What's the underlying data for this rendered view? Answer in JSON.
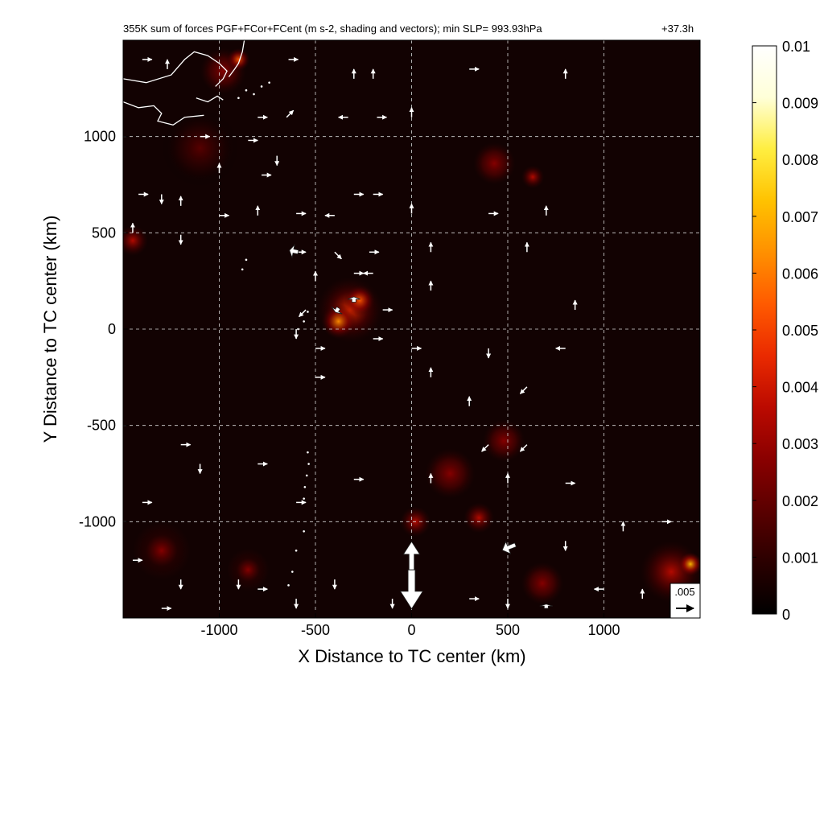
{
  "chart_data": {
    "type": "heatmap",
    "title": "355K sum of forces PGF+FCor+FCent (m s-2, shading and vectors); min SLP= 993.93hPa",
    "time_label": "+37.3h",
    "xlabel": "X Distance to TC center (km)",
    "ylabel": "Y Distance to TC center (km)",
    "xlim": [
      -1500,
      1500
    ],
    "ylim": [
      -1500,
      1500
    ],
    "x_ticks": [
      -1000,
      -500,
      0,
      500,
      1000
    ],
    "y_ticks": [
      -1000,
      -500,
      0,
      500,
      1000
    ],
    "x_tick_labels": [
      "-1000",
      "-500",
      "0",
      "500",
      "1000"
    ],
    "y_tick_labels": [
      "-1000",
      "-500",
      "0",
      "500",
      "1000"
    ],
    "grid": true,
    "colorbar": {
      "min": 0,
      "max": 0.01,
      "ticks": [
        0,
        0.001,
        0.002,
        0.003,
        0.004,
        0.005,
        0.006,
        0.007,
        0.008,
        0.009,
        0.01
      ],
      "tick_labels": [
        "0",
        "0.001",
        "0.002",
        "0.003",
        "0.004",
        "0.005",
        "0.006",
        "0.007",
        "0.008",
        "0.009",
        "0.01"
      ],
      "colors": [
        "#000000",
        "#2a0000",
        "#5a0000",
        "#8a0000",
        "#bb0a00",
        "#ea2a00",
        "#ff5a00",
        "#ff9000",
        "#ffc200",
        "#ffee40",
        "#ffffd8",
        "#ffffff"
      ]
    },
    "reference_vector": {
      "label": ".005",
      "value": 0.005,
      "direction": "east"
    },
    "hotspots": [
      {
        "x": -320,
        "y": 100,
        "r": 170,
        "v": 0.0045
      },
      {
        "x": -380,
        "y": 40,
        "r": 90,
        "v": 0.006
      },
      {
        "x": -270,
        "y": 150,
        "r": 80,
        "v": 0.0055
      },
      {
        "x": -1450,
        "y": 460,
        "r": 80,
        "v": 0.004
      },
      {
        "x": -980,
        "y": 1340,
        "r": 120,
        "v": 0.003
      },
      {
        "x": -900,
        "y": 1400,
        "r": 60,
        "v": 0.005
      },
      {
        "x": 430,
        "y": 860,
        "r": 110,
        "v": 0.003
      },
      {
        "x": 630,
        "y": 790,
        "r": 60,
        "v": 0.004
      },
      {
        "x": 480,
        "y": -580,
        "r": 110,
        "v": 0.003
      },
      {
        "x": 200,
        "y": -750,
        "r": 130,
        "v": 0.003
      },
      {
        "x": 350,
        "y": -980,
        "r": 80,
        "v": 0.0035
      },
      {
        "x": 1350,
        "y": -1260,
        "r": 160,
        "v": 0.004
      },
      {
        "x": 1450,
        "y": -1220,
        "r": 60,
        "v": 0.007
      },
      {
        "x": 680,
        "y": -1320,
        "r": 110,
        "v": 0.003
      },
      {
        "x": -1300,
        "y": -1150,
        "r": 150,
        "v": 0.0025
      },
      {
        "x": -850,
        "y": -1250,
        "r": 110,
        "v": 0.0025
      },
      {
        "x": 20,
        "y": -1000,
        "r": 80,
        "v": 0.004
      },
      {
        "x": -1100,
        "y": 940,
        "r": 200,
        "v": 0.0015
      }
    ],
    "vectors": [
      {
        "x": -1400,
        "y": 1400,
        "u": 1,
        "v": 0
      },
      {
        "x": -1270,
        "y": 1350,
        "u": 0,
        "v": 1
      },
      {
        "x": -640,
        "y": 1400,
        "u": 1,
        "v": 0
      },
      {
        "x": -300,
        "y": 1300,
        "u": 0,
        "v": 1
      },
      {
        "x": -200,
        "y": 1300,
        "u": 0,
        "v": 1
      },
      {
        "x": 300,
        "y": 1350,
        "u": 1,
        "v": 0
      },
      {
        "x": 800,
        "y": 1300,
        "u": 0,
        "v": 1
      },
      {
        "x": -800,
        "y": 1100,
        "u": 1,
        "v": 0
      },
      {
        "x": -650,
        "y": 1100,
        "u": 1,
        "v": 1
      },
      {
        "x": -330,
        "y": 1100,
        "u": -1,
        "v": 0
      },
      {
        "x": -180,
        "y": 1100,
        "u": 1,
        "v": 0
      },
      {
        "x": 0,
        "y": 1100,
        "u": 0,
        "v": 1
      },
      {
        "x": -1100,
        "y": 1000,
        "u": 1,
        "v": 0
      },
      {
        "x": -850,
        "y": 980,
        "u": 1,
        "v": 0
      },
      {
        "x": -700,
        "y": 900,
        "u": 0,
        "v": -1
      },
      {
        "x": -1000,
        "y": 810,
        "u": 0,
        "v": 1
      },
      {
        "x": -780,
        "y": 800,
        "u": 1,
        "v": 0
      },
      {
        "x": -1420,
        "y": 700,
        "u": 1,
        "v": 0
      },
      {
        "x": -1300,
        "y": 700,
        "u": 0,
        "v": -1
      },
      {
        "x": -1200,
        "y": 640,
        "u": 0,
        "v": 1
      },
      {
        "x": -800,
        "y": 590,
        "u": 0,
        "v": 1
      },
      {
        "x": -1000,
        "y": 590,
        "u": 1,
        "v": 0
      },
      {
        "x": -600,
        "y": 600,
        "u": 1,
        "v": 0
      },
      {
        "x": -400,
        "y": 590,
        "u": -1,
        "v": 0
      },
      {
        "x": -300,
        "y": 700,
        "u": 1,
        "v": 0
      },
      {
        "x": -200,
        "y": 700,
        "u": 1,
        "v": 0
      },
      {
        "x": 0,
        "y": 600,
        "u": 0,
        "v": 1
      },
      {
        "x": 400,
        "y": 600,
        "u": 1,
        "v": 0
      },
      {
        "x": 700,
        "y": 590,
        "u": 0,
        "v": 1
      },
      {
        "x": -1450,
        "y": 500,
        "u": 0,
        "v": 1
      },
      {
        "x": -1200,
        "y": 490,
        "u": 0,
        "v": -1
      },
      {
        "x": -600,
        "y": 400,
        "u": 1,
        "v": 0
      },
      {
        "x": -400,
        "y": 400,
        "u": 1,
        "v": -1
      },
      {
        "x": -220,
        "y": 400,
        "u": 1,
        "v": 0
      },
      {
        "x": 100,
        "y": 400,
        "u": 0,
        "v": 1
      },
      {
        "x": 600,
        "y": 400,
        "u": 0,
        "v": 1
      },
      {
        "x": -500,
        "y": 250,
        "u": 0,
        "v": 1
      },
      {
        "x": -300,
        "y": 290,
        "u": 1,
        "v": 0
      },
      {
        "x": -200,
        "y": 290,
        "u": -1,
        "v": 0
      },
      {
        "x": 100,
        "y": 200,
        "u": 0,
        "v": 1
      },
      {
        "x": -550,
        "y": 100,
        "u": -1,
        "v": -1
      },
      {
        "x": -150,
        "y": 100,
        "u": 1,
        "v": 0
      },
      {
        "x": 850,
        "y": 100,
        "u": 0,
        "v": 1
      },
      {
        "x": -600,
        "y": 0,
        "u": 0,
        "v": -1
      },
      {
        "x": -200,
        "y": -50,
        "u": 1,
        "v": 0
      },
      {
        "x": 0,
        "y": -100,
        "u": 1,
        "v": 0
      },
      {
        "x": -500,
        "y": -100,
        "u": 1,
        "v": 0
      },
      {
        "x": 400,
        "y": -100,
        "u": 0,
        "v": -1
      },
      {
        "x": 800,
        "y": -100,
        "u": -1,
        "v": 0
      },
      {
        "x": -500,
        "y": -250,
        "u": 1,
        "v": 0
      },
      {
        "x": 100,
        "y": -250,
        "u": 0,
        "v": 1
      },
      {
        "x": 600,
        "y": -300,
        "u": -1,
        "v": -1
      },
      {
        "x": 300,
        "y": -400,
        "u": 0,
        "v": 1
      },
      {
        "x": -1200,
        "y": -600,
        "u": 1,
        "v": 0
      },
      {
        "x": 400,
        "y": -600,
        "u": -1,
        "v": -1
      },
      {
        "x": 600,
        "y": -600,
        "u": -1,
        "v": -1
      },
      {
        "x": -1100,
        "y": -700,
        "u": 0,
        "v": -1
      },
      {
        "x": -800,
        "y": -700,
        "u": 1,
        "v": 0
      },
      {
        "x": -300,
        "y": -780,
        "u": 1,
        "v": 0
      },
      {
        "x": 100,
        "y": -800,
        "u": 0,
        "v": 1
      },
      {
        "x": 500,
        "y": -800,
        "u": 0,
        "v": 1
      },
      {
        "x": 800,
        "y": -800,
        "u": 1,
        "v": 0
      },
      {
        "x": -1400,
        "y": -900,
        "u": 1,
        "v": 0
      },
      {
        "x": -600,
        "y": -900,
        "u": 1,
        "v": 0
      },
      {
        "x": 800,
        "y": -1100,
        "u": 0,
        "v": -1
      },
      {
        "x": 1100,
        "y": -1050,
        "u": 0,
        "v": 1
      },
      {
        "x": 1300,
        "y": -1000,
        "u": 1,
        "v": 0
      },
      {
        "x": -1450,
        "y": -1200,
        "u": 1,
        "v": 0
      },
      {
        "x": -1200,
        "y": -1300,
        "u": 0,
        "v": -1
      },
      {
        "x": -900,
        "y": -1300,
        "u": 0,
        "v": -1
      },
      {
        "x": -800,
        "y": -1350,
        "u": 1,
        "v": 0
      },
      {
        "x": -600,
        "y": -1400,
        "u": 0,
        "v": -1
      },
      {
        "x": -400,
        "y": -1300,
        "u": 0,
        "v": -1
      },
      {
        "x": 1000,
        "y": -1350,
        "u": -1,
        "v": 0
      },
      {
        "x": 1200,
        "y": -1400,
        "u": 0,
        "v": 1
      },
      {
        "x": -1300,
        "y": -1450,
        "u": 1,
        "v": 0
      },
      {
        "x": -100,
        "y": -1400,
        "u": 0,
        "v": -1
      },
      {
        "x": 300,
        "y": -1400,
        "u": 1,
        "v": 0
      },
      {
        "x": 500,
        "y": -1400,
        "u": 0,
        "v": -1
      }
    ],
    "large_vectors": [
      {
        "x": 0,
        "y": -1250,
        "u": 0,
        "v": 1,
        "mag": 0.008
      },
      {
        "x": 0,
        "y": -1250,
        "u": 0,
        "v": -1,
        "mag": 0.011
      },
      {
        "x": 540,
        "y": -1120,
        "u": -1,
        "v": -0.4,
        "mag": 0.004
      },
      {
        "x": -590,
        "y": 400,
        "u": -1,
        "v": 0.2,
        "mag": 0.0025
      },
      {
        "x": -300,
        "y": 140,
        "u": 0,
        "v": 1,
        "mag": 0.0015
      },
      {
        "x": -380,
        "y": 110,
        "u": -0.6,
        "v": -0.9,
        "mag": 0.0015
      },
      {
        "x": 700,
        "y": -1450,
        "u": 0,
        "v": 1,
        "mag": 0.0012
      }
    ],
    "coastline": [
      [
        [
          -1500,
          1300
        ],
        [
          -1380,
          1280
        ],
        [
          -1250,
          1320
        ],
        [
          -1180,
          1400
        ],
        [
          -1130,
          1440
        ],
        [
          -1060,
          1420
        ],
        [
          -1000,
          1380
        ],
        [
          -960,
          1340
        ],
        [
          -980,
          1300
        ],
        [
          -1020,
          1260
        ]
      ],
      [
        [
          -1500,
          1180
        ],
        [
          -1420,
          1150
        ],
        [
          -1340,
          1160
        ],
        [
          -1300,
          1120
        ],
        [
          -1320,
          1080
        ],
        [
          -1240,
          1060
        ],
        [
          -1180,
          1100
        ],
        [
          -1080,
          1110
        ]
      ],
      [
        [
          -1120,
          1200
        ],
        [
          -1060,
          1180
        ],
        [
          -1010,
          1210
        ],
        [
          -980,
          1190
        ]
      ],
      [
        [
          -950,
          1310
        ],
        [
          -920,
          1350
        ],
        [
          -900,
          1380
        ],
        [
          -880,
          1440
        ],
        [
          -870,
          1500
        ]
      ]
    ],
    "island_dots": [
      [
        -900,
        1200
      ],
      [
        -860,
        1240
      ],
      [
        -820,
        1220
      ],
      [
        -780,
        1260
      ],
      [
        -740,
        1280
      ],
      [
        -540,
        90
      ],
      [
        -560,
        40
      ],
      [
        -590,
        0
      ],
      [
        -860,
        360
      ],
      [
        -880,
        310
      ],
      [
        -540,
        -640
      ],
      [
        -535,
        -700
      ],
      [
        -545,
        -760
      ],
      [
        -555,
        -820
      ],
      [
        -560,
        -880
      ],
      [
        -560,
        -1050
      ],
      [
        -600,
        -1150
      ],
      [
        -620,
        -1260
      ],
      [
        -640,
        -1330
      ]
    ]
  }
}
